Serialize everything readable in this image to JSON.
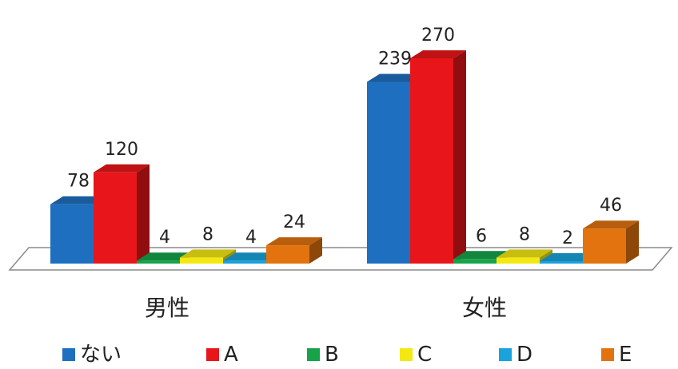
{
  "chart_data": {
    "type": "bar",
    "categories": [
      "男性",
      "女性"
    ],
    "series": [
      {
        "name": "ない",
        "color": "#1f6fc0",
        "values": [
          78,
          239
        ]
      },
      {
        "name": "A",
        "color": "#e8161a",
        "values": [
          120,
          270
        ]
      },
      {
        "name": "B",
        "color": "#16a34a",
        "values": [
          4,
          6
        ]
      },
      {
        "name": "C",
        "color": "#f4e812",
        "values": [
          8,
          8
        ]
      },
      {
        "name": "D",
        "color": "#19a2dc",
        "values": [
          4,
          2
        ]
      },
      {
        "name": "E",
        "color": "#e2730f",
        "values": [
          24,
          46
        ]
      }
    ],
    "data_labels": [
      [
        "78",
        "120",
        "4",
        "8",
        "4",
        "24"
      ],
      [
        "239",
        "270",
        "6",
        "8",
        "2",
        "46"
      ]
    ],
    "legend_position": "bottom",
    "grid": false,
    "style": "3d"
  }
}
